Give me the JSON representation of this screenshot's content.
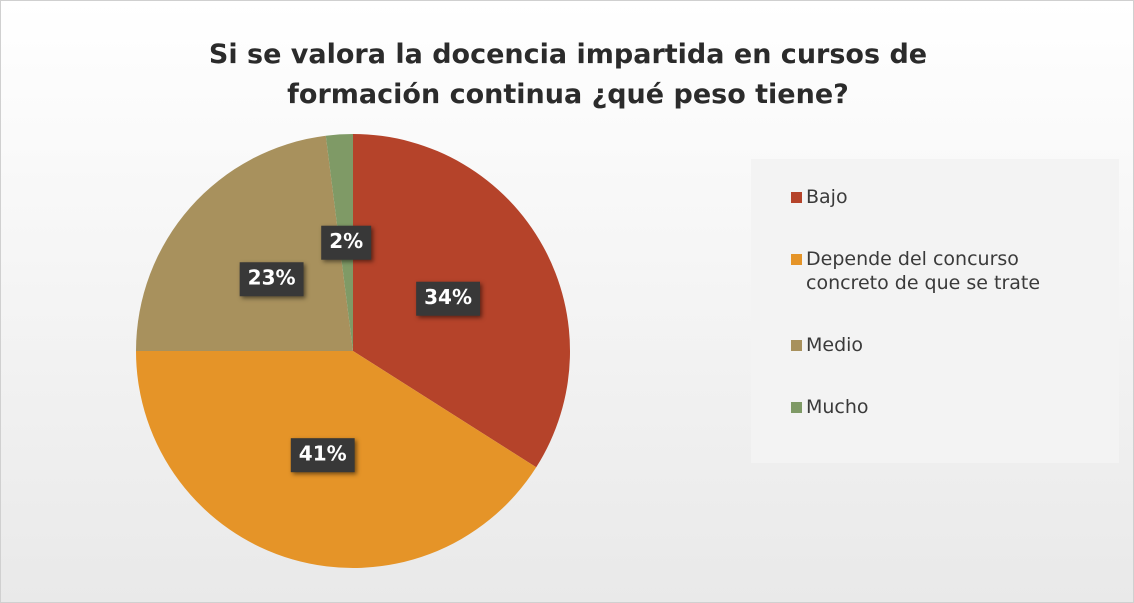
{
  "chart_data": {
    "type": "pie",
    "title": "Si se valora la docencia impartida en cursos de formación continua ¿qué peso tiene?",
    "categories": [
      "Bajo",
      "Depende del concurso concreto de que se trate",
      "Medio",
      "Mucho"
    ],
    "values": [
      34,
      41,
      23,
      2
    ],
    "value_labels": [
      "34%",
      "41%",
      "23%",
      "2%"
    ],
    "colors": [
      "#b5432a",
      "#e59428",
      "#a8915d",
      "#7f9a66"
    ],
    "legend": "right"
  }
}
